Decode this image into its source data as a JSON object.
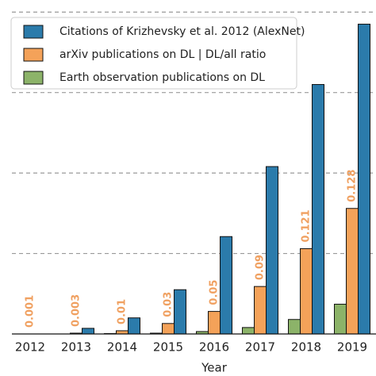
{
  "chart_data": {
    "type": "bar",
    "xlabel": "Year",
    "categories": [
      "2012",
      "2013",
      "2014",
      "2015",
      "2016",
      "2017",
      "2018",
      "2019"
    ],
    "series": [
      {
        "name": "Earth observation publications on DL",
        "color": "#8cb369",
        "values": [
          0,
          0,
          0.005,
          0.01,
          0.03,
          0.08,
          0.18,
          0.37
        ]
      },
      {
        "name": "arXiv publications on DL | DL/all ratio",
        "color": "#f4a259",
        "values": [
          0,
          0.01,
          0.04,
          0.13,
          0.28,
          0.59,
          1.06,
          1.56
        ]
      },
      {
        "name": "Citations of Krizhevsky et al. 2012 (AlexNet)",
        "color": "#2b7bab",
        "values": [
          0,
          0.07,
          0.2,
          0.55,
          1.21,
          2.08,
          3.1,
          3.85
        ]
      }
    ],
    "annotations": [
      "0.001",
      "0.003",
      "0.01",
      "0.03",
      "0.05",
      "0.09",
      "0.121",
      "0.128"
    ],
    "annotation_color": "#f0a060",
    "ylim": [
      0,
      4.15
    ],
    "yticks": [
      1,
      2,
      3,
      4
    ],
    "grid": true
  }
}
